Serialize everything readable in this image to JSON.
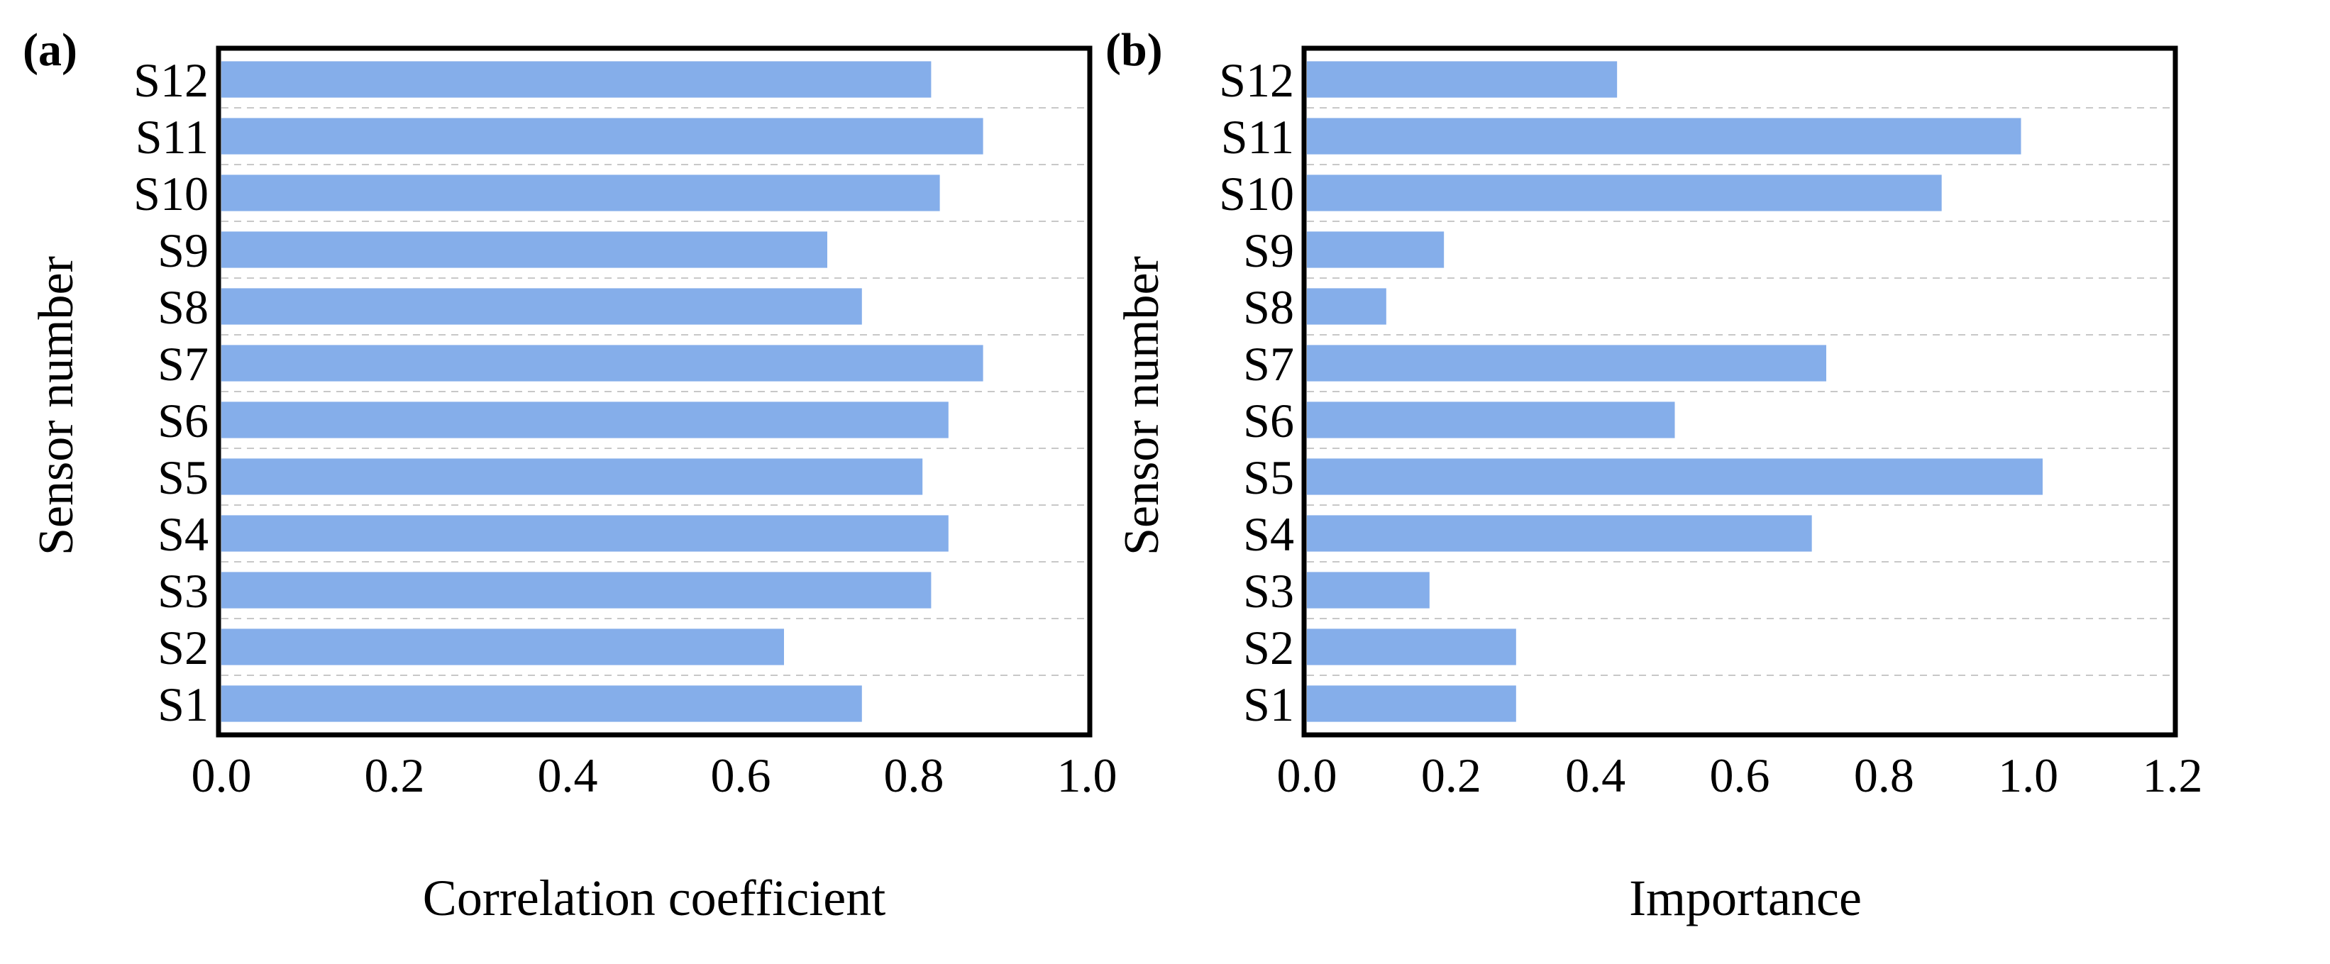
{
  "chart_data": [
    {
      "type": "bar",
      "orientation": "horizontal",
      "panel_label": "(a)",
      "categories": [
        "S1",
        "S2",
        "S3",
        "S4",
        "S5",
        "S6",
        "S7",
        "S8",
        "S9",
        "S10",
        "S11",
        "S12"
      ],
      "values": [
        0.74,
        0.65,
        0.82,
        0.84,
        0.81,
        0.84,
        0.88,
        0.74,
        0.7,
        0.83,
        0.88,
        0.82
      ],
      "xlabel": "Correlation coefficient",
      "ylabel": "Sensor number",
      "xlim": [
        0.0,
        1.0
      ],
      "xticks": [
        "0.0",
        "0.2",
        "0.4",
        "0.6",
        "0.8",
        "1.0"
      ],
      "grid": "horizontal dashed",
      "bar_color": "#85aeea"
    },
    {
      "type": "bar",
      "orientation": "horizontal",
      "panel_label": "(b)",
      "categories": [
        "S1",
        "S2",
        "S3",
        "S4",
        "S5",
        "S6",
        "S7",
        "S8",
        "S9",
        "S10",
        "S11",
        "S12"
      ],
      "values": [
        0.29,
        0.29,
        0.17,
        0.7,
        1.02,
        0.51,
        0.72,
        0.11,
        0.19,
        0.88,
        0.99,
        0.43
      ],
      "xlabel": "Importance",
      "ylabel": "Sensor number",
      "xlim": [
        0.0,
        1.2
      ],
      "xticks": [
        "0.0",
        "0.2",
        "0.4",
        "0.6",
        "0.8",
        "1.0",
        "1.2"
      ],
      "grid": "horizontal dashed",
      "bar_color": "#85aeea"
    }
  ]
}
